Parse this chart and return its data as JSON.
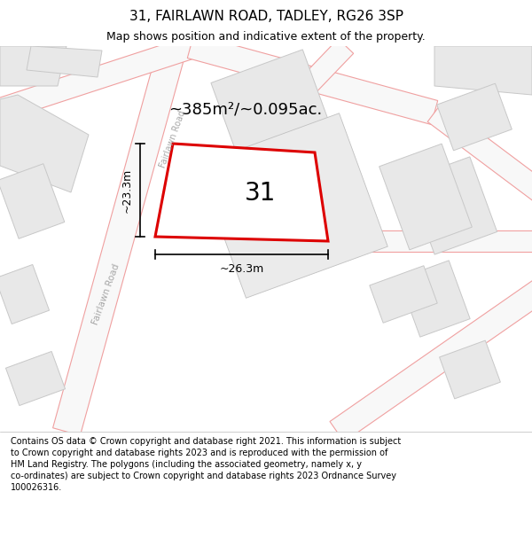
{
  "title": "31, FAIRLAWN ROAD, TADLEY, RG26 3SP",
  "subtitle": "Map shows position and indicative extent of the property.",
  "footer": "Contains OS data © Crown copyright and database right 2021. This information is subject to Crown copyright and database rights 2023 and is reproduced with the permission of HM Land Registry. The polygons (including the associated geometry, namely x, y co-ordinates) are subject to Crown copyright and database rights 2023 Ordnance Survey 100026316.",
  "map_bg": "#f5f5f5",
  "road_fill": "#ffffff",
  "road_line_color": "#f0a0a0",
  "building_fill": "#e8e8e8",
  "building_edge": "#c8c8c8",
  "plot_fill": "#ffffff",
  "plot_edge": "#dd0000",
  "area_label": "~385m²/~0.095ac.",
  "number_label": "31",
  "dim_width": "~26.3m",
  "dim_height": "~23.3m",
  "road_label": "Fairlawn Road",
  "road_label2": "Fairlawn Road"
}
